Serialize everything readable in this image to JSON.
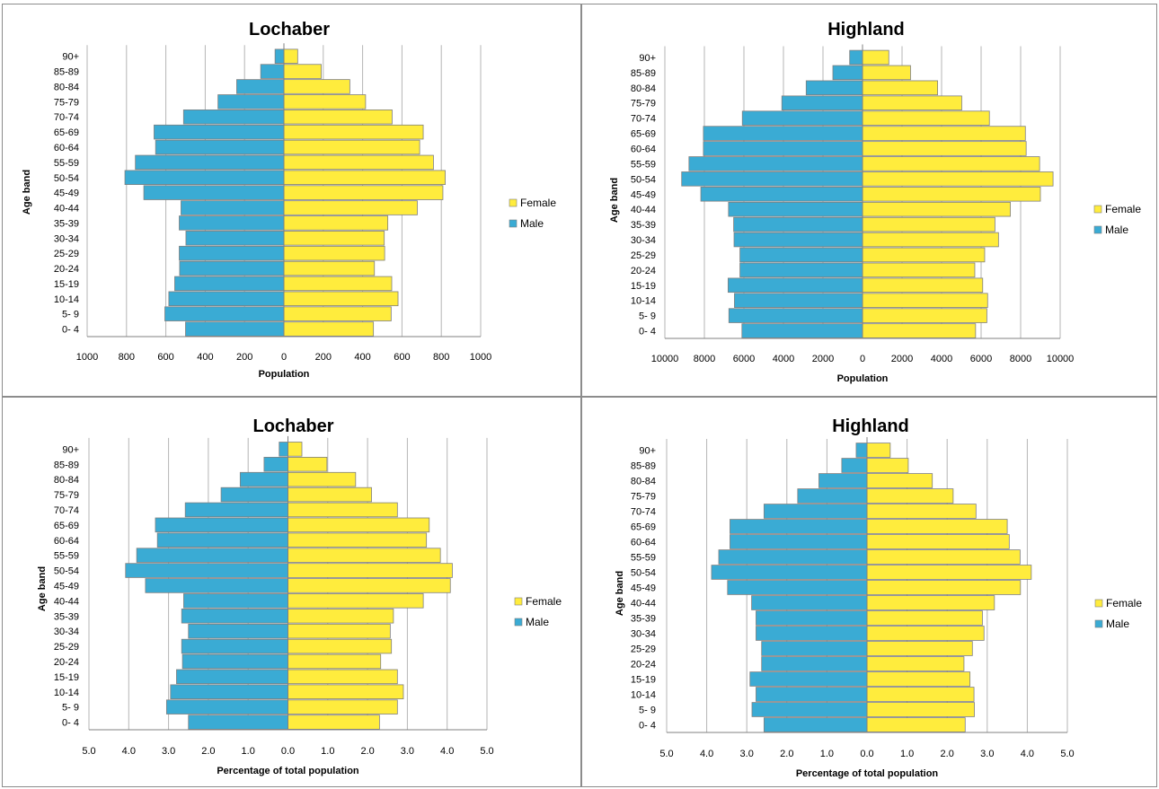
{
  "chart_data": [
    {
      "type": "bar",
      "orientation": "horizontal-pyramid",
      "title": "Lochaber",
      "xlabel": "Population",
      "ylabel": "Age band",
      "categories": [
        "0- 4",
        "5- 9",
        "10-14",
        "15-19",
        "20-24",
        "25-29",
        "30-34",
        "35-39",
        "40-44",
        "45-49",
        "50-54",
        "55-59",
        "60-64",
        "65-69",
        "70-74",
        "75-79",
        "80-84",
        "85-89",
        "90+"
      ],
      "xlim": [
        -1000,
        1000
      ],
      "xticks": [
        -1000,
        -800,
        -600,
        -400,
        -200,
        0,
        200,
        400,
        600,
        800,
        1000
      ],
      "xtick_labels": [
        "1000",
        "800",
        "600",
        "400",
        "200",
        "0",
        "200",
        "400",
        "600",
        "800",
        "1000"
      ],
      "grid": "vertical",
      "legend": "right",
      "series": [
        {
          "name": "Female",
          "color": "#ffec3d",
          "values": [
            455,
            545,
            580,
            548,
            460,
            512,
            510,
            528,
            678,
            808,
            820,
            760,
            690,
            708,
            550,
            415,
            335,
            190,
            70
          ]
        },
        {
          "name": "Male",
          "color": "#3aabd4",
          "values": [
            -500,
            -605,
            -585,
            -555,
            -530,
            -532,
            -498,
            -532,
            -523,
            -712,
            -808,
            -755,
            -652,
            -660,
            -510,
            -335,
            -240,
            -118,
            -45
          ]
        }
      ]
    },
    {
      "type": "bar",
      "orientation": "horizontal-pyramid",
      "title": "Highland",
      "xlabel": "Population",
      "ylabel": "Age band",
      "categories": [
        "0- 4",
        "5- 9",
        "10-14",
        "15-19",
        "20-24",
        "25-29",
        "30-34",
        "35-39",
        "40-44",
        "45-49",
        "50-54",
        "55-59",
        "60-64",
        "65-69",
        "70-74",
        "75-79",
        "80-84",
        "85-89",
        "90+"
      ],
      "xlim": [
        -10000,
        10000
      ],
      "xticks": [
        -10000,
        -8000,
        -6000,
        -4000,
        -2000,
        0,
        2000,
        4000,
        6000,
        8000,
        10000
      ],
      "xtick_labels": [
        "10000",
        "8000",
        "6000",
        "4000",
        "2000",
        "0",
        "2000",
        "4000",
        "6000",
        "8000",
        "10000"
      ],
      "grid": "vertical",
      "legend": "right",
      "series": [
        {
          "name": "Female",
          "color": "#ffec3d",
          "values": [
            5720,
            6290,
            6330,
            6080,
            5680,
            6180,
            6880,
            6700,
            7480,
            9000,
            9640,
            8960,
            8280,
            8240,
            6420,
            5020,
            3800,
            2430,
            1330
          ]
        },
        {
          "name": "Male",
          "color": "#3aabd4",
          "values": [
            -6100,
            -6760,
            -6480,
            -6800,
            -6200,
            -6200,
            -6500,
            -6520,
            -6780,
            -8180,
            -9150,
            -8780,
            -8050,
            -8050,
            -6080,
            -4080,
            -2850,
            -1500,
            -650
          ]
        }
      ]
    },
    {
      "type": "bar",
      "orientation": "horizontal-pyramid",
      "title": "Lochaber",
      "xlabel": "Percentage of total population",
      "ylabel": "Age band",
      "categories": [
        "0- 4",
        "5- 9",
        "10-14",
        "15-19",
        "20-24",
        "25-29",
        "30-34",
        "35-39",
        "40-44",
        "45-49",
        "50-54",
        "55-59",
        "60-64",
        "65-69",
        "70-74",
        "75-79",
        "80-84",
        "85-89",
        "90+"
      ],
      "xlim": [
        -5,
        5
      ],
      "xticks": [
        -5,
        -4,
        -3,
        -2,
        -1,
        0,
        1,
        2,
        3,
        4,
        5
      ],
      "xtick_labels": [
        "5.0",
        "4.0",
        "3.0",
        "2.0",
        "1.0",
        "0.0",
        "1.0",
        "2.0",
        "3.0",
        "4.0",
        "5.0"
      ],
      "grid": "vertical",
      "legend": "right",
      "series": [
        {
          "name": "Female",
          "color": "#ffec3d",
          "values": [
            2.3,
            2.75,
            2.9,
            2.75,
            2.33,
            2.6,
            2.57,
            2.65,
            3.4,
            4.08,
            4.13,
            3.83,
            3.48,
            3.55,
            2.75,
            2.1,
            1.7,
            0.98,
            0.35
          ]
        },
        {
          "name": "Male",
          "color": "#3aabd4",
          "values": [
            -2.5,
            -3.05,
            -2.95,
            -2.8,
            -2.65,
            -2.67,
            -2.5,
            -2.67,
            -2.62,
            -3.58,
            -4.08,
            -3.8,
            -3.28,
            -3.33,
            -2.58,
            -1.68,
            -1.2,
            -0.6,
            -0.22
          ]
        }
      ]
    },
    {
      "type": "bar",
      "orientation": "horizontal-pyramid",
      "title": "Highland",
      "xlabel": "Percentage of total population",
      "ylabel": "Age band",
      "categories": [
        "0- 4",
        "5- 9",
        "10-14",
        "15-19",
        "20-24",
        "25-29",
        "30-34",
        "35-39",
        "40-44",
        "45-49",
        "50-54",
        "55-59",
        "60-64",
        "65-69",
        "70-74",
        "75-79",
        "80-84",
        "85-89",
        "90+"
      ],
      "xlim": [
        -5,
        5
      ],
      "xticks": [
        -5,
        -4,
        -3,
        -2,
        -1,
        0,
        1,
        2,
        3,
        4,
        5
      ],
      "xtick_labels": [
        "5.0",
        "4.0",
        "3.0",
        "2.0",
        "1.0",
        "0.0",
        "1.0",
        "2.0",
        "3.0",
        "4.0",
        "5.0"
      ],
      "grid": "vertical",
      "legend": "right",
      "series": [
        {
          "name": "Female",
          "color": "#ffec3d",
          "values": [
            2.45,
            2.68,
            2.67,
            2.57,
            2.42,
            2.63,
            2.92,
            2.88,
            3.18,
            3.83,
            4.1,
            3.82,
            3.55,
            3.5,
            2.72,
            2.15,
            1.63,
            1.03,
            0.58
          ]
        },
        {
          "name": "Male",
          "color": "#3aabd4",
          "values": [
            -2.57,
            -2.87,
            -2.77,
            -2.92,
            -2.63,
            -2.63,
            -2.77,
            -2.77,
            -2.88,
            -3.48,
            -3.88,
            -3.7,
            -3.42,
            -3.42,
            -2.57,
            -1.73,
            -1.2,
            -0.63,
            -0.27
          ]
        }
      ]
    }
  ]
}
